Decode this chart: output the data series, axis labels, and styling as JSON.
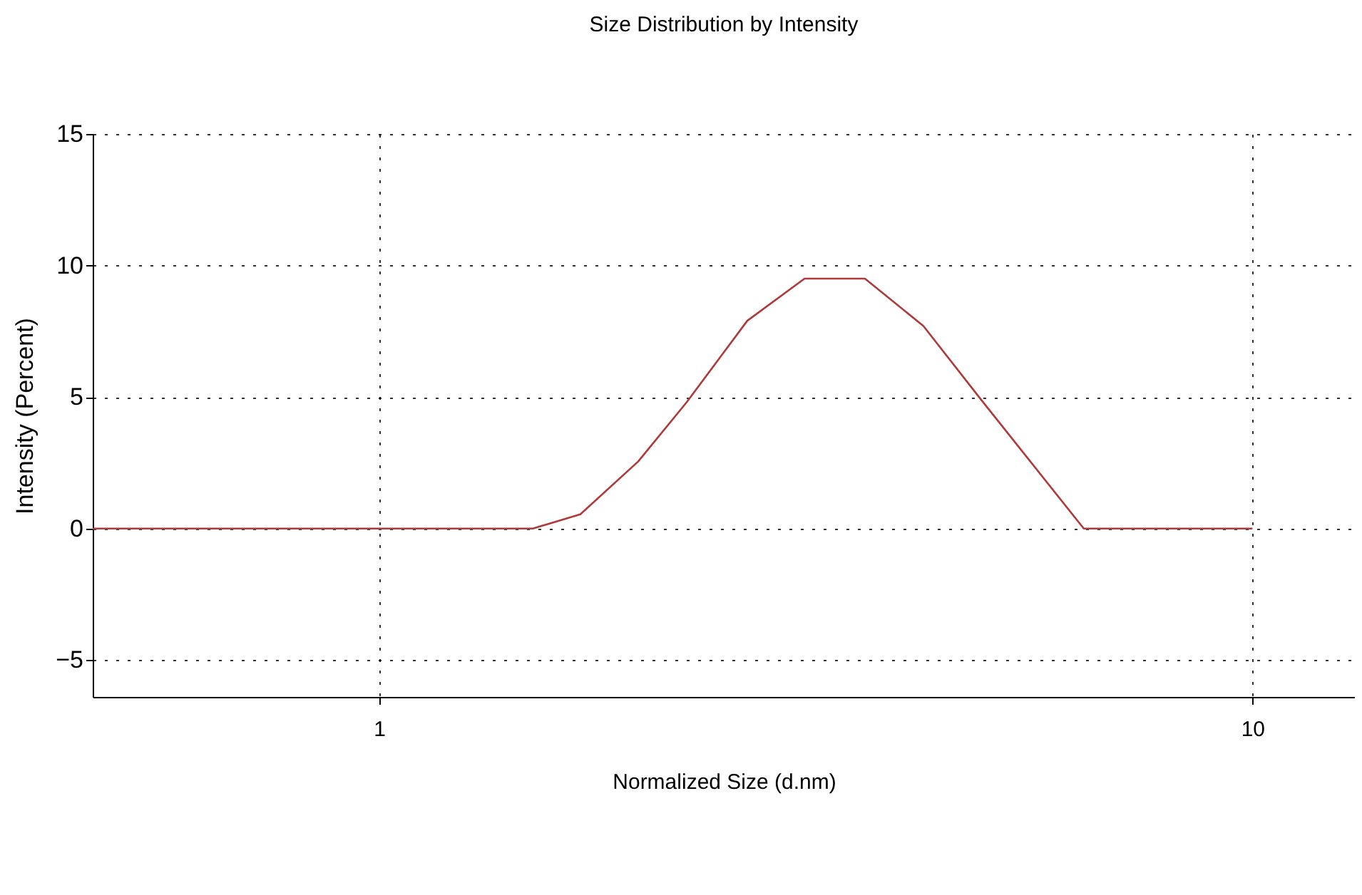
{
  "chart_data": {
    "type": "line",
    "title": "Size Distribution by Intensity",
    "xlabel": "Normalized Size (d.nm)",
    "ylabel": "Intensity (Percent)",
    "log": "x",
    "xlim": [
      0.47,
      13.1
    ],
    "xticks": [
      1,
      10
    ],
    "ylim": [
      -6.4,
      15
    ],
    "yticks": [
      -5,
      0,
      5,
      10,
      15
    ],
    "grid": true,
    "marker": "none",
    "line_style": "solid",
    "series": [
      {
        "color": "#b03a3a",
        "x": [
          0.47,
          1.0,
          1.5,
          1.7,
          1.98,
          2.25,
          2.64,
          3.07,
          3.6,
          4.2,
          4.89,
          6.41,
          10
        ],
        "values": [
          0,
          0,
          0,
          0.54,
          2.55,
          4.8,
          7.9,
          9.5,
          9.5,
          7.7,
          4.9,
          0,
          0
        ]
      }
    ]
  }
}
